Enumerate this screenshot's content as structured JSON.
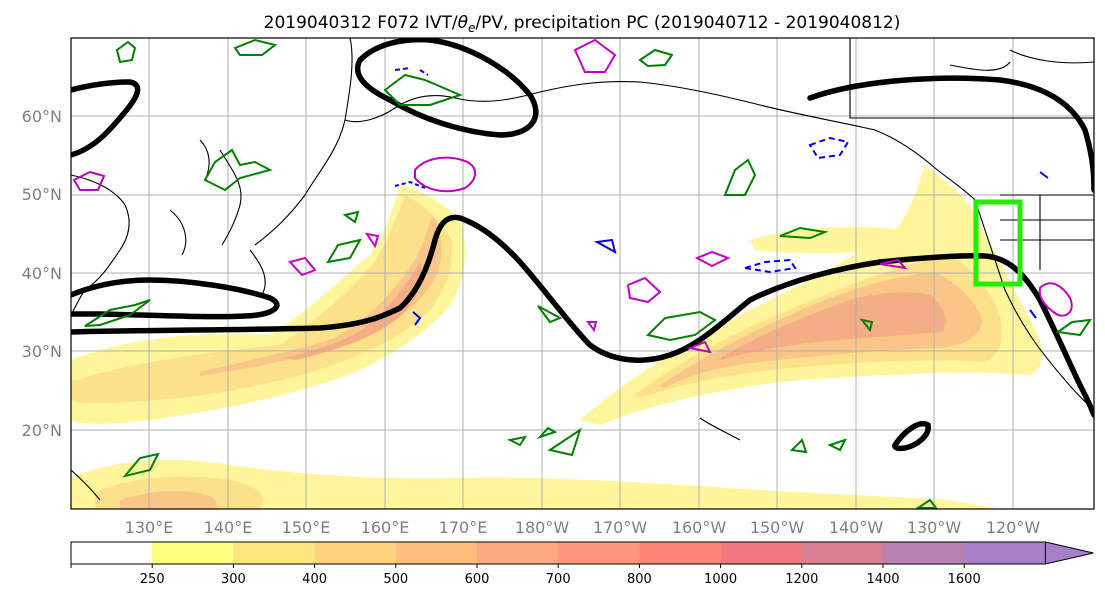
{
  "title": {
    "prefix": "2019040312 F072 IVT/",
    "theta": "θ",
    "theta_sub": "e",
    "suffix": "/PV, precipitation PC (2019040712 - 2019040812)"
  },
  "latitude_labels": [
    "60°N",
    "50°N",
    "40°N",
    "30°N",
    "20°N"
  ],
  "longitude_labels": [
    "130°E",
    "140°E",
    "150°E",
    "160°E",
    "170°E",
    "180°W",
    "170°W",
    "160°W",
    "150°W",
    "140°W",
    "130°W",
    "120°W"
  ],
  "colorbar": {
    "ticks": [
      "250",
      "300",
      "400",
      "500",
      "600",
      "700",
      "800",
      "1000",
      "1200",
      "1400",
      "1600"
    ],
    "colors": [
      "#ffffff",
      "#ffff80",
      "#ffe680",
      "#ffd27e",
      "#ffbe7e",
      "#ffaa7e",
      "#ff967a",
      "#ff8678",
      "#f0787e",
      "#d88090",
      "#b882b0",
      "#a880c8"
    ],
    "extend": "max"
  },
  "colors": {
    "ivt_fill_light": "#fff59a",
    "ivt_fill_mid": "#fde08a",
    "ivt_fill_deep": "#f9c589",
    "ivt_fill_core": "#f5ad86",
    "theta_e_contour": "#000000",
    "pv_positive": "#008000",
    "pv_magenta": "#c000c0",
    "pv_blue": "#0000e0",
    "target_box": "#22ee00",
    "grid": "#b0b0b0",
    "coast": "#000000"
  }
}
